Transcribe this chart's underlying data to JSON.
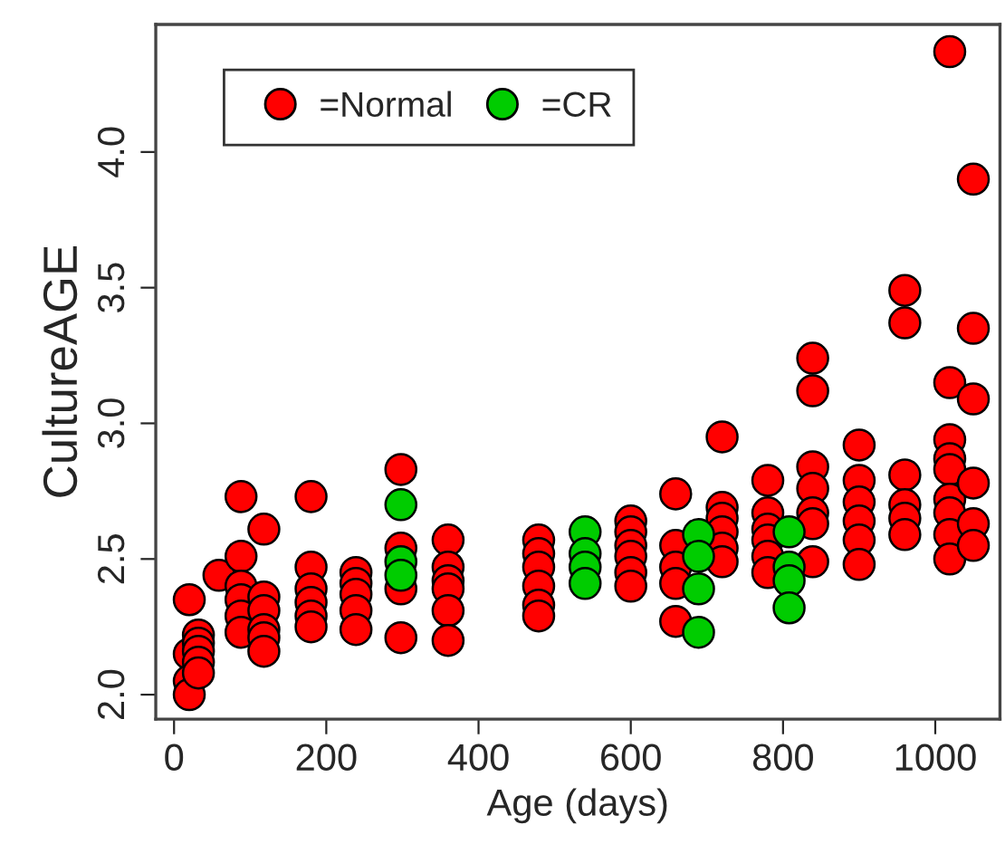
{
  "chart_data": {
    "type": "scatter",
    "xlabel": "Age (days)",
    "ylabel": "CultureAGE",
    "xlim": [
      -24,
      1085
    ],
    "ylim": [
      1.91,
      4.47
    ],
    "xticks": [
      0,
      200,
      400,
      600,
      800,
      1000
    ],
    "yticks": [
      {
        "value": 2.0,
        "label": "2.0"
      },
      {
        "value": 2.5,
        "label": "2.5"
      },
      {
        "value": 3.0,
        "label": "3.0"
      },
      {
        "value": 3.5,
        "label": "3.5"
      },
      {
        "value": 4.0,
        "label": "4.0"
      }
    ],
    "grid": false,
    "legend": "top left",
    "marker": "circle",
    "series": [
      {
        "name": "=Normal",
        "color": "#ff0000",
        "x": [
          20,
          20,
          20,
          20,
          32,
          32,
          32,
          32,
          32,
          59,
          88,
          88,
          88,
          88,
          88,
          88,
          118,
          118,
          118,
          118,
          118,
          118,
          180,
          180,
          180,
          180,
          180,
          180,
          239,
          239,
          239,
          239,
          239,
          298,
          298,
          298,
          298,
          360,
          360,
          360,
          360,
          360,
          360,
          479,
          479,
          479,
          479,
          479,
          479,
          600,
          600,
          600,
          600,
          600,
          600,
          659,
          659,
          659,
          659,
          659,
          720,
          720,
          720,
          720,
          720,
          720,
          780,
          780,
          780,
          780,
          780,
          780,
          839,
          839,
          839,
          839,
          839,
          839,
          839,
          900,
          900,
          900,
          900,
          900,
          900,
          960,
          960,
          960,
          960,
          960,
          960,
          1019,
          1019,
          1019,
          1019,
          1019,
          1019,
          1019,
          1019,
          1019,
          1050,
          1050,
          1050,
          1050,
          1050,
          1050
        ],
        "values": [
          2.35,
          2.15,
          2.05,
          2.0,
          2.22,
          2.19,
          2.16,
          2.12,
          2.08,
          2.44,
          2.73,
          2.51,
          2.4,
          2.35,
          2.29,
          2.23,
          2.61,
          2.36,
          2.31,
          2.24,
          2.21,
          2.16,
          2.73,
          2.47,
          2.39,
          2.34,
          2.29,
          2.25,
          2.45,
          2.41,
          2.37,
          2.31,
          2.24,
          2.83,
          2.54,
          2.39,
          2.21,
          2.57,
          2.47,
          2.42,
          2.39,
          2.31,
          2.2,
          2.57,
          2.52,
          2.47,
          2.4,
          2.33,
          2.29,
          2.64,
          2.6,
          2.55,
          2.51,
          2.45,
          2.4,
          2.74,
          2.55,
          2.47,
          2.41,
          2.27,
          2.95,
          2.69,
          2.65,
          2.6,
          2.54,
          2.49,
          2.79,
          2.67,
          2.61,
          2.57,
          2.51,
          2.45,
          3.24,
          3.12,
          2.84,
          2.76,
          2.67,
          2.63,
          2.49,
          2.92,
          2.79,
          2.71,
          2.64,
          2.57,
          2.48,
          3.49,
          3.37,
          2.81,
          2.7,
          2.65,
          2.59,
          4.37,
          3.15,
          2.94,
          2.87,
          2.83,
          2.72,
          2.67,
          2.59,
          2.5,
          3.9,
          3.35,
          3.09,
          2.78,
          2.63,
          2.55
        ]
      },
      {
        "name": "=CR",
        "color": "#00cc00",
        "x": [
          298,
          298,
          298,
          540,
          540,
          540,
          540,
          689,
          689,
          689,
          689,
          808,
          808,
          808,
          808
        ],
        "values": [
          2.7,
          2.49,
          2.44,
          2.6,
          2.52,
          2.47,
          2.41,
          2.59,
          2.51,
          2.39,
          2.23,
          2.6,
          2.47,
          2.42,
          2.32
        ]
      }
    ]
  }
}
